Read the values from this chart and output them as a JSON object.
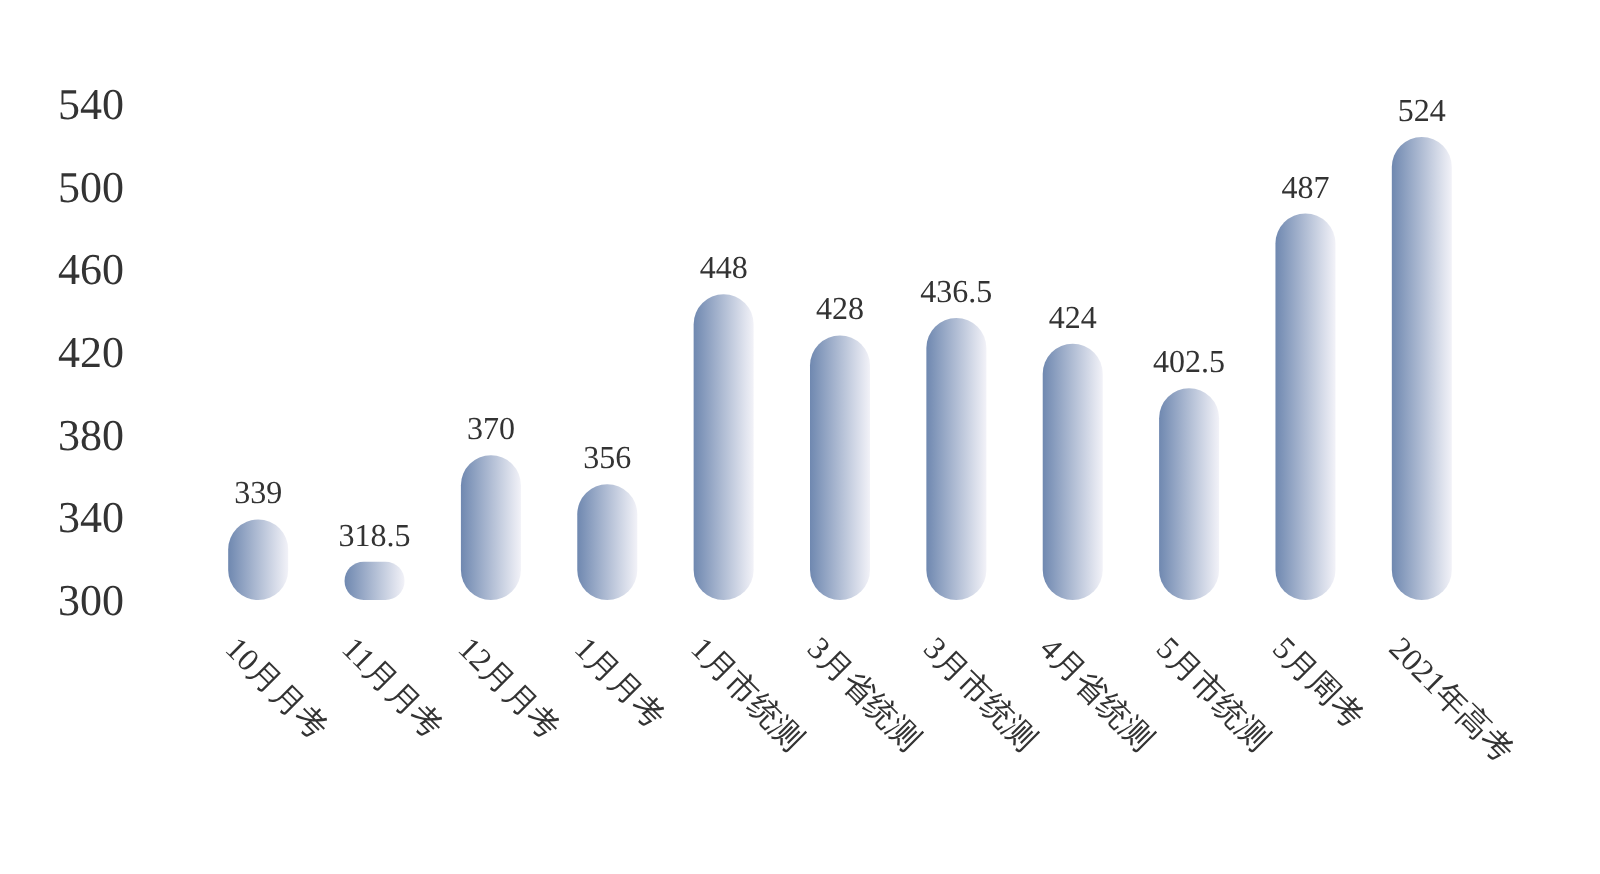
{
  "chart_data": {
    "type": "bar",
    "categories": [
      "10月月考",
      "11月月考",
      "12月月考",
      "1月月考",
      "1月市统测",
      "3月省统测",
      "3月市统测",
      "4月省统测",
      "5月市统测",
      "5月周考",
      "2021年高考"
    ],
    "values": [
      339,
      318.5,
      370,
      356,
      448,
      428,
      436.5,
      424,
      402.5,
      487,
      524
    ],
    "color": "#6f88b0",
    "ylim": [
      300,
      540
    ],
    "yticks": [
      300,
      340,
      380,
      420,
      460,
      500,
      540
    ],
    "grid": false,
    "data_labels": true
  }
}
